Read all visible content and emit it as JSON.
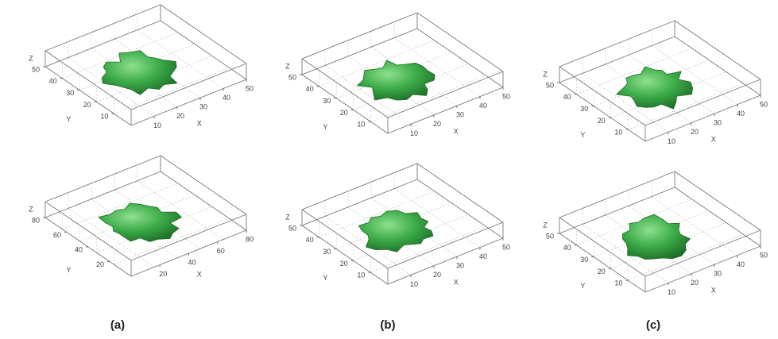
{
  "panels": [
    {
      "x_label": "X",
      "y_label": "Y",
      "z_label": "Z",
      "xticks": [
        10,
        20,
        30,
        40,
        50
      ],
      "yticks": [
        50,
        40,
        30,
        20,
        10
      ]
    },
    {
      "x_label": "X",
      "y_label": "Y",
      "z_label": "Z",
      "xticks": [
        10,
        20,
        30,
        40,
        50
      ],
      "yticks": [
        50,
        40,
        30,
        20,
        10
      ]
    },
    {
      "x_label": "X",
      "y_label": "Y",
      "z_label": "Z",
      "xticks": [
        10,
        20,
        30,
        40,
        50
      ],
      "yticks": [
        50,
        40,
        30,
        20,
        10
      ]
    },
    {
      "x_label": "X",
      "y_label": "Y",
      "z_label": "Z",
      "xticks": [
        20,
        40,
        60,
        80
      ],
      "yticks": [
        80,
        60,
        40,
        20
      ]
    },
    {
      "x_label": "X",
      "y_label": "Y",
      "z_label": "Z",
      "xticks": [
        10,
        20,
        30,
        40,
        50
      ],
      "yticks": [
        50,
        40,
        30,
        20,
        10
      ]
    },
    {
      "x_label": "X",
      "y_label": "Y",
      "z_label": "Z",
      "xticks": [
        10,
        20,
        30,
        40,
        50
      ],
      "yticks": [
        50,
        40,
        30,
        20,
        10
      ]
    }
  ],
  "captions": [
    "(a)",
    "(b)",
    "(c)"
  ]
}
